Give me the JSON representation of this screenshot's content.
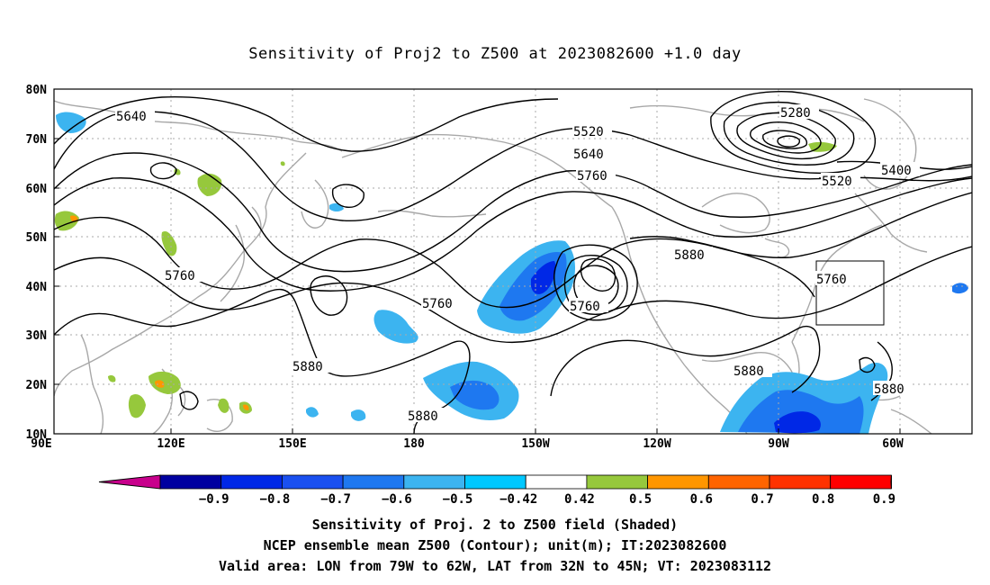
{
  "title": "Sensitivity of Proj2 to Z500 at 2023082600 +1.0 day",
  "lat_labels": [
    "80N",
    "70N",
    "60N",
    "50N",
    "40N",
    "30N",
    "20N",
    "10N"
  ],
  "lon_labels": [
    "90E",
    "120E",
    "150E",
    "180",
    "150W",
    "120W",
    "90W",
    "60W"
  ],
  "contour_labels": {
    "c5640a": "5640",
    "c5520a": "5520",
    "c5640b": "5640",
    "c5760a": "5760",
    "c5280": "5280",
    "c5400": "5400",
    "c5520b": "5520",
    "c5880a": "5880",
    "c5760b": "5760",
    "c5760c": "5760",
    "c5760d": "5760",
    "c5760e": "5760",
    "c5880b": "5880",
    "c5880c": "5880",
    "c5880d": "5880",
    "c5880e": "5880"
  },
  "colorbar": {
    "labels": [
      "-0.9",
      "-0.8",
      "-0.7",
      "-0.6",
      "-0.5",
      "-0.42",
      "0.42",
      "0.5",
      "0.6",
      "0.7",
      "0.8",
      "0.9"
    ],
    "colors": [
      "#c8008c",
      "#0000a0",
      "#0028e6",
      "#1a50f0",
      "#1e78f0",
      "#3cb4f0",
      "#00c8ff",
      "#ffffff",
      "#96c83c",
      "#ff9600",
      "#ff6400",
      "#ff3200",
      "#ff0000",
      "#ff96c8"
    ]
  },
  "valid_area_box": {
    "lon_from": "79W",
    "lon_to": "62W",
    "lat_from": "32N",
    "lat_to": "45N"
  },
  "captions": {
    "line1": "Sensitivity of Proj. 2 to Z500 field (Shaded)",
    "line2": "NCEP ensemble mean Z500 (Contour); unit(m); IT:2023082600",
    "line3": "Valid area: LON from 79W to 62W, LAT from 32N to 45N; VT: 2023083112"
  }
}
